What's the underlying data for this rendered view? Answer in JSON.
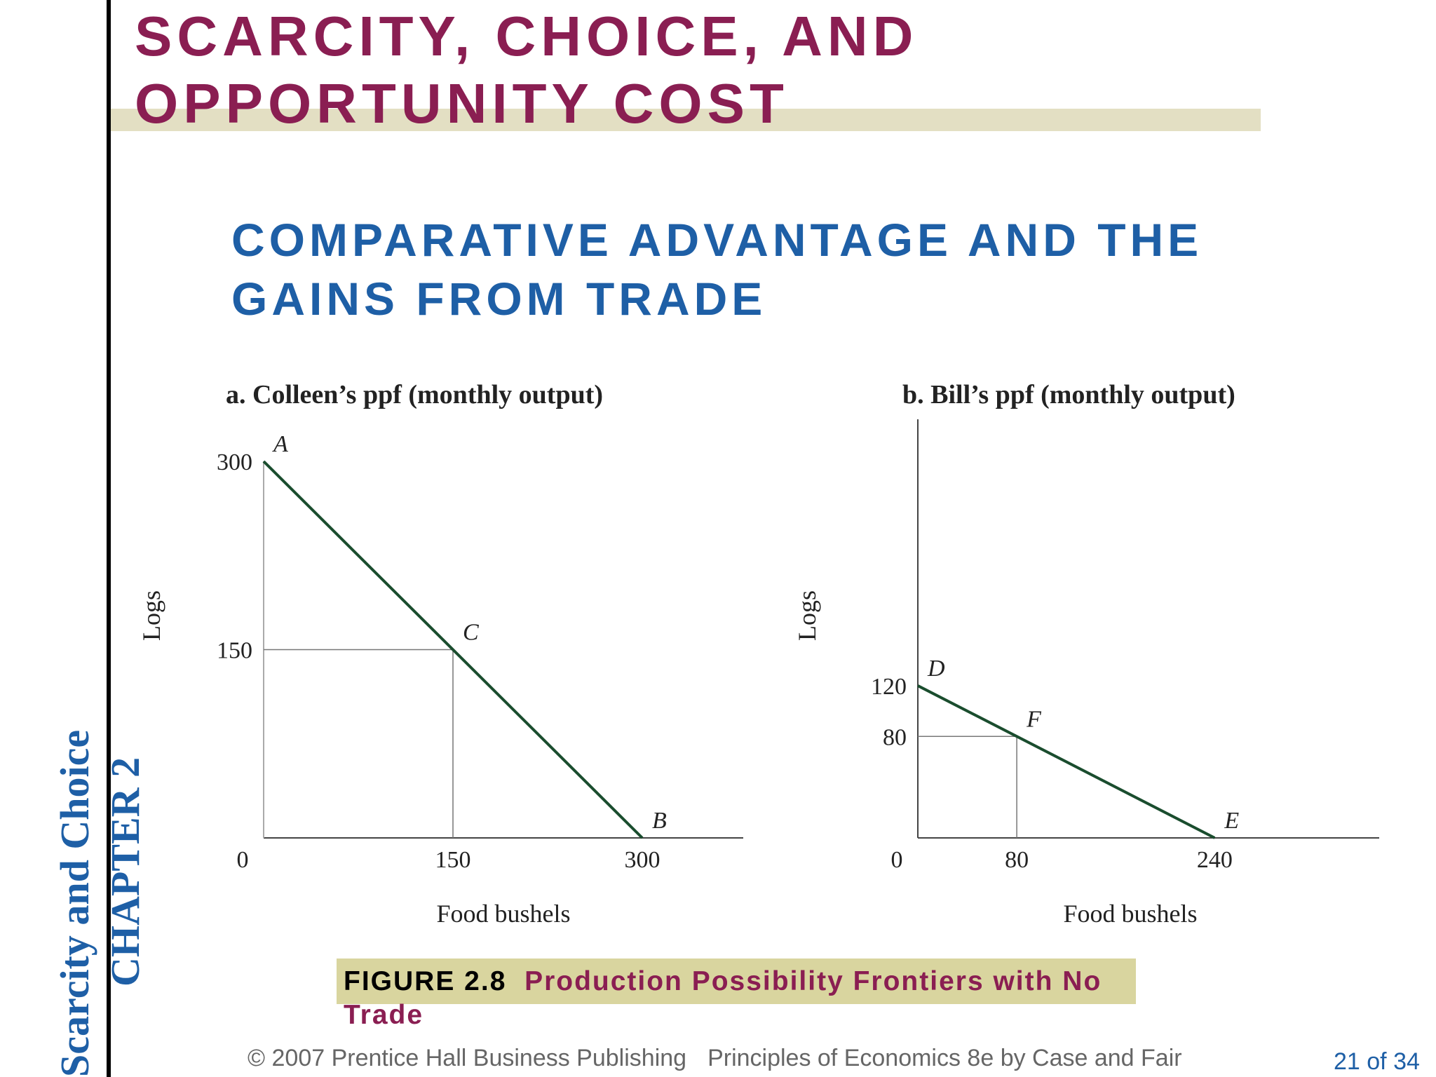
{
  "slide": {
    "title": "SCARCITY, CHOICE, AND OPPORTUNITY COST",
    "subtitle": "COMPARATIVE ADVANTAGE AND THE GAINS FROM TRADE",
    "side_text_line1": "CHAPTER 2",
    "side_text_line2": "Scarcity and Choice",
    "figure_number": "FIGURE 2.8",
    "figure_title": "Production Possibility Frontiers with No Trade",
    "footer_publisher": "© 2007 Prentice Hall Business Publishing",
    "footer_book": "Principles of Economics 8e by Case and Fair",
    "page_number": "21 of 34",
    "colors": {
      "title": "#8a1e52",
      "subtitle": "#1e5fa6",
      "curve": "#1a4d2e",
      "title_band": "#e3dfc3",
      "caption_box": "#d9d59f"
    }
  },
  "chart_data": [
    {
      "type": "line",
      "title": "a. Colleen’s ppf (monthly output)",
      "xlabel": "Food bushels",
      "ylabel": "Logs",
      "origin_label": "0",
      "xlim": [
        0,
        380
      ],
      "ylim": [
        0,
        300
      ],
      "x_ticks": [
        150,
        300
      ],
      "y_ticks": [
        150,
        300
      ],
      "series": [
        {
          "x": [
            0,
            300
          ],
          "y": [
            300,
            0
          ]
        }
      ],
      "points": [
        {
          "label": "A",
          "x": 0,
          "y": 300
        },
        {
          "label": "C",
          "x": 150,
          "y": 150
        },
        {
          "label": "B",
          "x": 300,
          "y": 0
        }
      ],
      "guides": [
        {
          "x": 150,
          "y": 150
        }
      ]
    },
    {
      "type": "line",
      "title": "b. Bill’s ppf (monthly output)",
      "xlabel": "Food bushels",
      "ylabel": "Logs",
      "origin_label": "0",
      "xlim": [
        0,
        373
      ],
      "ylim": [
        0,
        330
      ],
      "x_ticks": [
        80,
        240
      ],
      "y_ticks": [
        80,
        120
      ],
      "series": [
        {
          "x": [
            0,
            240
          ],
          "y": [
            120,
            0
          ]
        }
      ],
      "points": [
        {
          "label": "D",
          "x": 0,
          "y": 120
        },
        {
          "label": "F",
          "x": 80,
          "y": 80
        },
        {
          "label": "E",
          "x": 240,
          "y": 0
        }
      ],
      "guides": [
        {
          "x": 80,
          "y": 80
        }
      ]
    }
  ]
}
